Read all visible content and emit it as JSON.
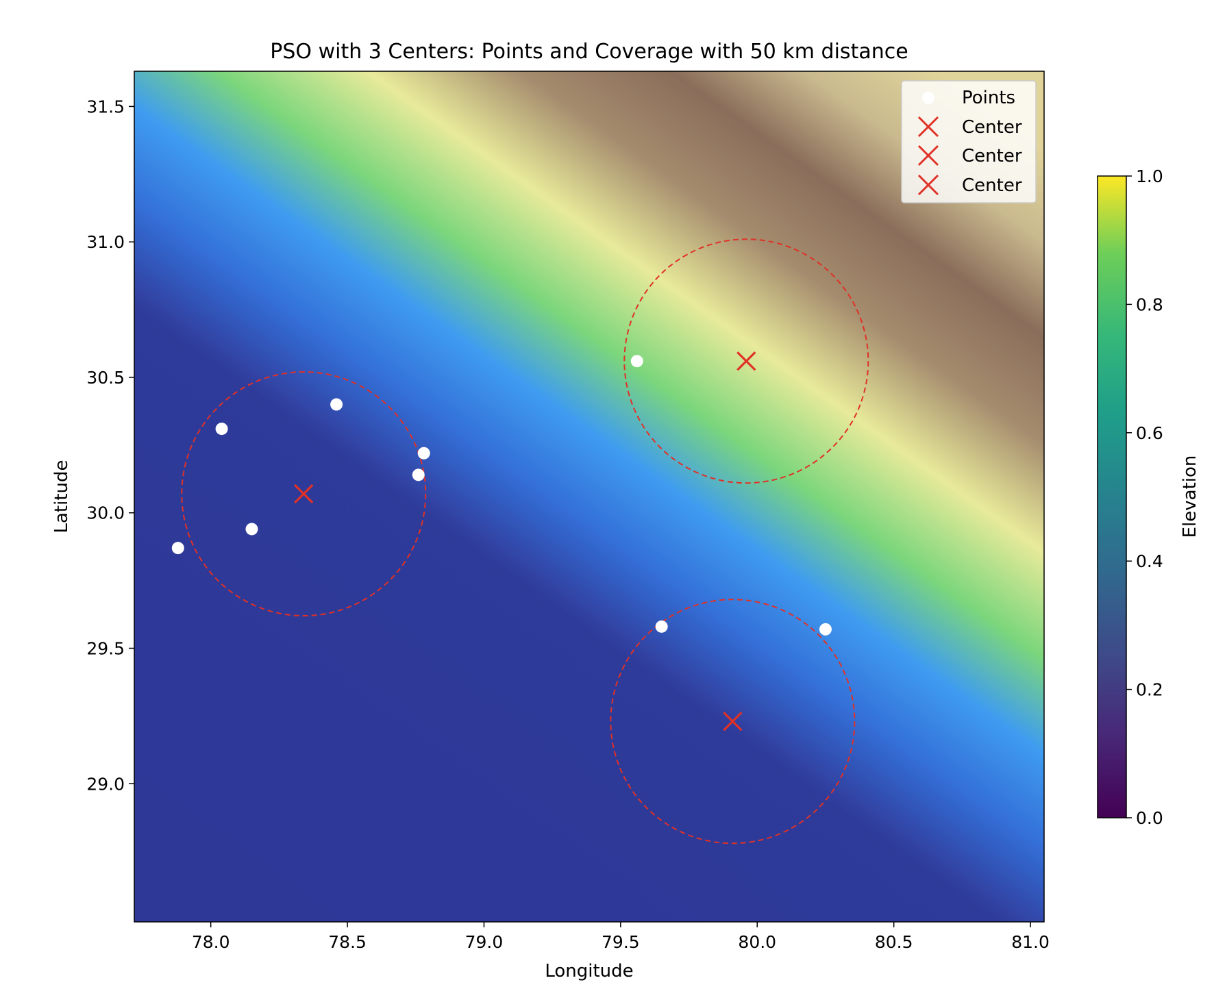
{
  "chart_data": {
    "type": "scatter",
    "title": "PSO with 3 Centers: Points and Coverage with 50 km distance",
    "xlabel": "Longitude",
    "ylabel": "Latitude",
    "xlim": [
      77.72,
      81.05
    ],
    "ylim": [
      28.49,
      31.63
    ],
    "xticks": [
      "78.0",
      "78.5",
      "79.0",
      "79.5",
      "80.0",
      "80.5",
      "81.0"
    ],
    "yticks": [
      "29.0",
      "29.5",
      "30.0",
      "30.5",
      "31.0",
      "31.5"
    ],
    "background": "elevation raster (terrain colormap)",
    "series": [
      {
        "name": "Points",
        "marker": "circle",
        "color": "#ffffff",
        "points": [
          {
            "x": 78.04,
            "y": 30.31
          },
          {
            "x": 78.46,
            "y": 30.4
          },
          {
            "x": 78.78,
            "y": 30.22
          },
          {
            "x": 78.76,
            "y": 30.14
          },
          {
            "x": 78.15,
            "y": 29.94
          },
          {
            "x": 77.88,
            "y": 29.87
          },
          {
            "x": 79.56,
            "y": 30.56
          },
          {
            "x": 79.65,
            "y": 29.58
          },
          {
            "x": 80.25,
            "y": 29.57
          }
        ]
      },
      {
        "name": "Center",
        "marker": "x",
        "color": "#e03127",
        "points": [
          {
            "x": 78.34,
            "y": 30.07
          },
          {
            "x": 79.96,
            "y": 30.56
          },
          {
            "x": 79.91,
            "y": 29.23
          }
        ]
      }
    ],
    "coverage_circles": {
      "radius_km": 50,
      "radius_deg_lat": 0.45,
      "color": "#e03127",
      "style": "dashed"
    },
    "legend": {
      "position": "top-right",
      "entries": [
        "Points",
        "Center",
        "Center",
        "Center"
      ]
    },
    "colorbar": {
      "label": "Elevation",
      "range": [
        0.0,
        1.0
      ],
      "ticks": [
        "0.0",
        "0.2",
        "0.4",
        "0.6",
        "0.8",
        "1.0"
      ],
      "colormap": "viridis"
    }
  }
}
